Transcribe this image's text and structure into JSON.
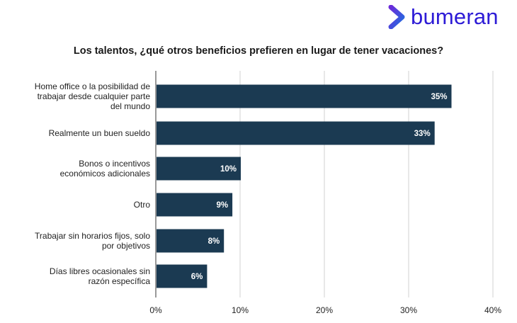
{
  "brand": {
    "name": "bumeran",
    "text_color": "#2d1bd6",
    "mark_colors": [
      "#6b2bd9",
      "#1f6fe0"
    ]
  },
  "chart_data": {
    "type": "bar",
    "orientation": "horizontal",
    "title": "Los talentos, ¿qué otros beneficios prefieren en lugar de tener vacaciones?",
    "categories": [
      [
        "Home office o la posibilidad de",
        "trabajar desde cualquier parte",
        "del mundo"
      ],
      [
        "Realmente un buen sueldo"
      ],
      [
        "Bonos o incentivos",
        "económicos adicionales"
      ],
      [
        "Otro"
      ],
      [
        "Trabajar sin horarios fijos, solo",
        "por objetivos"
      ],
      [
        "Días libres ocasionales sin",
        "razón específica"
      ]
    ],
    "values": [
      35,
      33,
      10,
      9,
      8,
      6
    ],
    "value_labels": [
      "35%",
      "33%",
      "10%",
      "9%",
      "8%",
      "6%"
    ],
    "xlim": [
      0,
      40
    ],
    "ticks": [
      0,
      10,
      20,
      30,
      40
    ],
    "tick_labels": [
      "0%",
      "10%",
      "20%",
      "30%",
      "40%"
    ],
    "grid": true,
    "bar_color": "#1b3a52",
    "grid_color": "#d0d0d0"
  }
}
